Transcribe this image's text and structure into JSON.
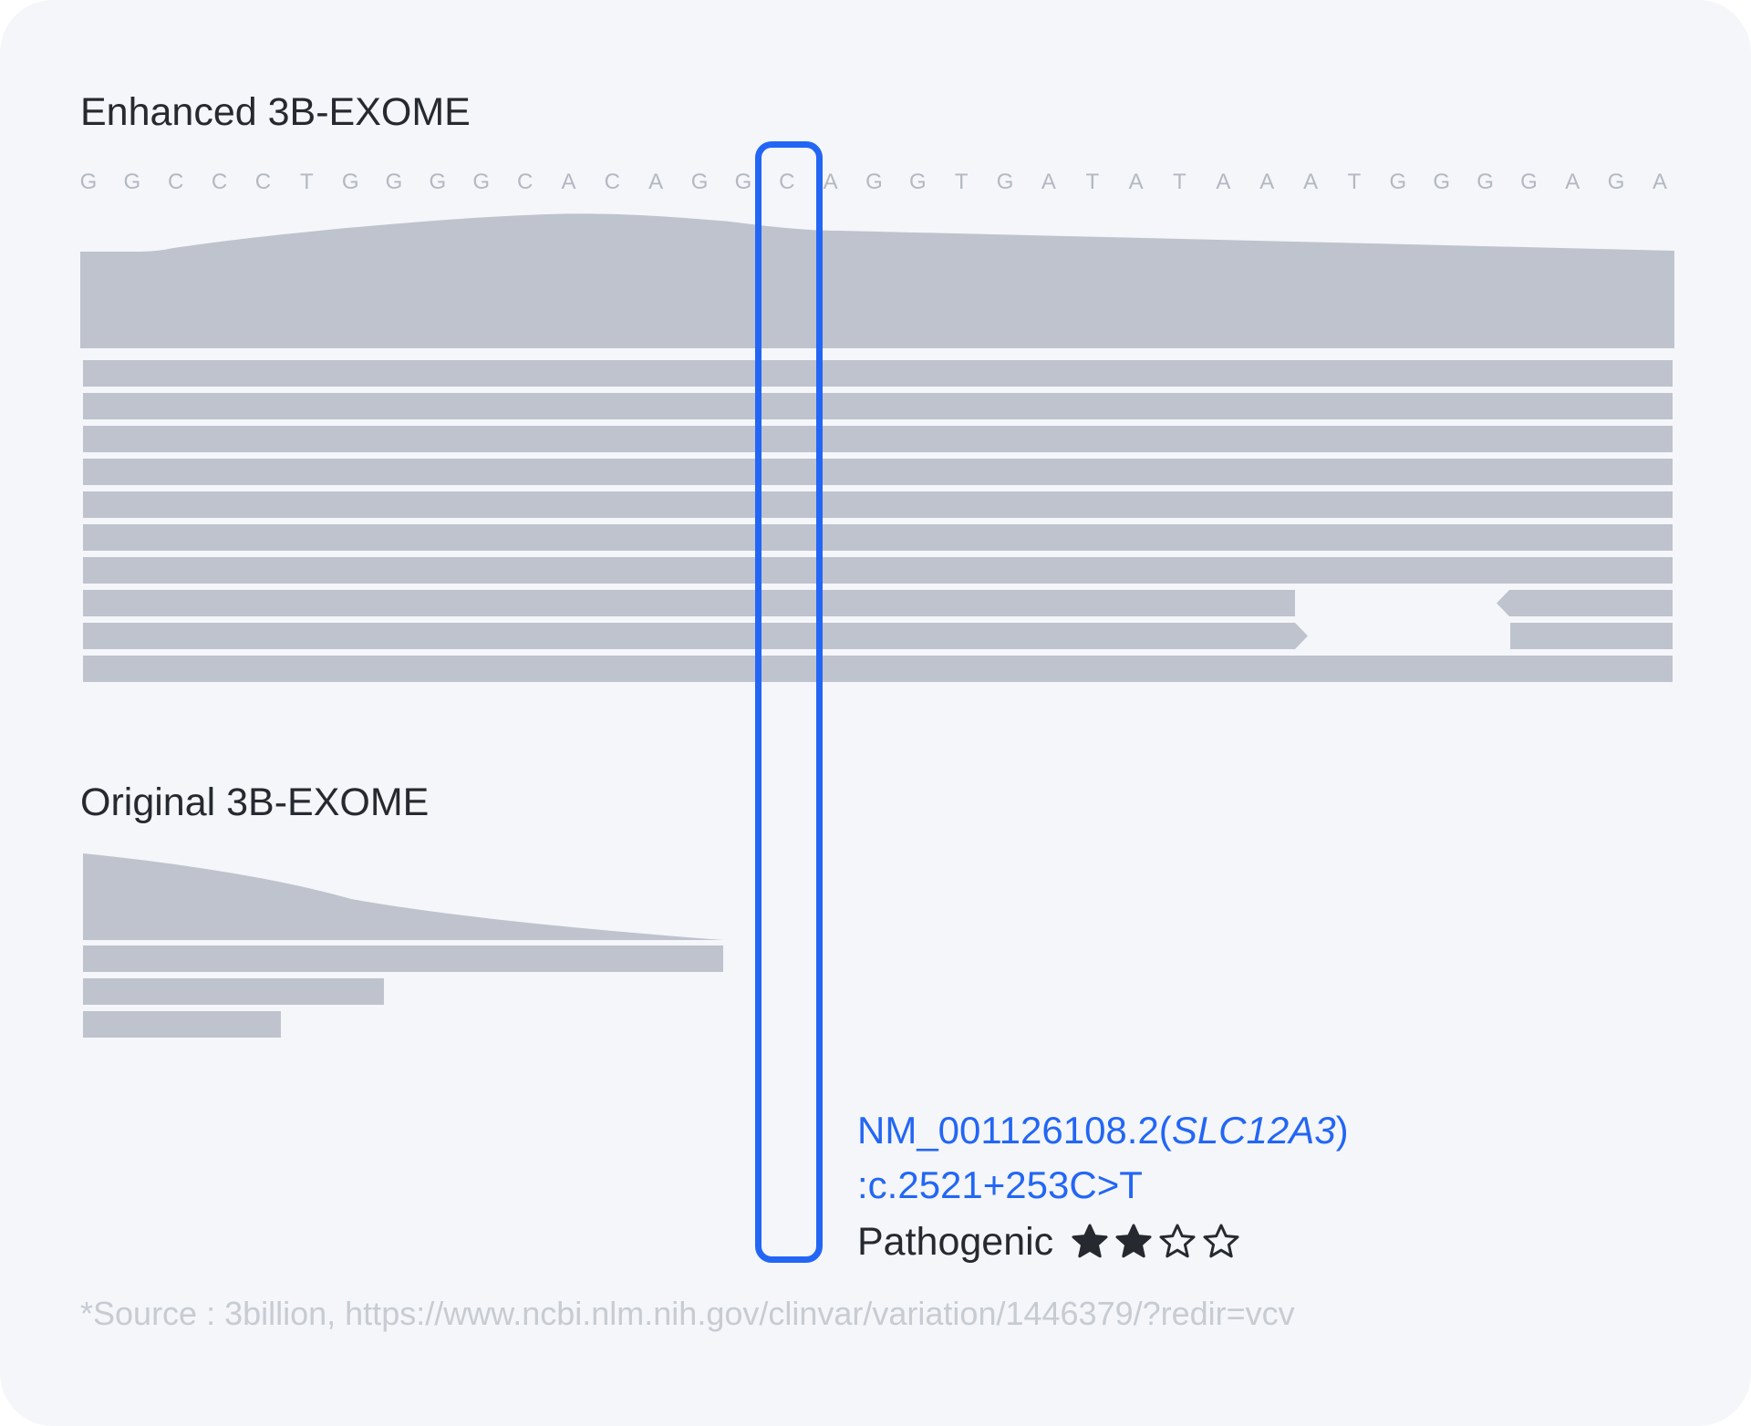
{
  "enhanced": {
    "title": "Enhanced 3B-EXOME"
  },
  "original": {
    "title": "Original 3B-EXOME"
  },
  "sequence": [
    "G",
    "G",
    "C",
    "C",
    "C",
    "T",
    "G",
    "G",
    "G",
    "G",
    "C",
    "A",
    "C",
    "A",
    "G",
    "G",
    "C",
    "A",
    "G",
    "G",
    "T",
    "G",
    "A",
    "T",
    "A",
    "T",
    "A",
    "A",
    "A",
    "T",
    "G",
    "G",
    "G",
    "G",
    "A",
    "G",
    "A"
  ],
  "highlighted_base_index": 16,
  "variant": {
    "transcript_prefix": "NM_001126108.2(",
    "gene": "SLC12A3",
    "transcript_suffix": ")",
    "hgvs": ":c.2521+253C>T",
    "significance": "Pathogenic",
    "review_stars": 2,
    "review_stars_max": 4
  },
  "source": "*Source : 3billion, https://www.ncbi.nlm.nih.gov/clinvar/variation/1446379/?redir=vcv",
  "colors": {
    "background": "#f4f6f9",
    "track": "#bec3cd",
    "highlight": "#2366f5",
    "text": "#26292f",
    "muted": "#b3b8c1"
  }
}
